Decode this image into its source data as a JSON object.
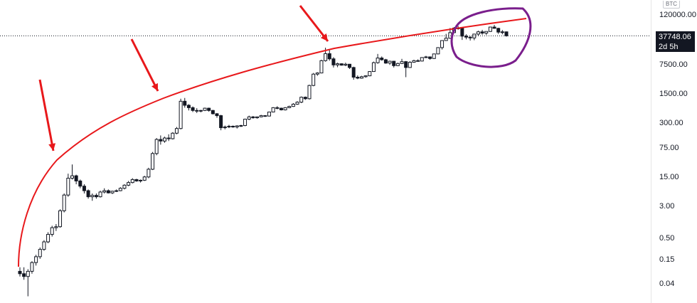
{
  "symbol_badge": "BTC",
  "price_label": {
    "price": "37748.06",
    "countdown": "2d 5h"
  },
  "chart_data": {
    "type": "candlestick",
    "yscale": "log",
    "ylim": [
      0.02,
      160000
    ],
    "y_ticks": [
      "120000.00",
      "7500.00",
      "1500.00",
      "300.00",
      "75.00",
      "15.00",
      "3.00",
      "0.50",
      "0.15",
      "0.04"
    ],
    "current_price": 37748.06,
    "ohlc": [
      [
        0.08,
        0.1,
        0.06,
        0.07
      ],
      [
        0.07,
        0.1,
        0.05,
        0.06
      ],
      [
        0.06,
        0.09,
        0.02,
        0.08
      ],
      [
        0.08,
        0.14,
        0.07,
        0.13
      ],
      [
        0.13,
        0.2,
        0.11,
        0.18
      ],
      [
        0.18,
        0.3,
        0.16,
        0.27
      ],
      [
        0.27,
        0.45,
        0.25,
        0.41
      ],
      [
        0.41,
        0.7,
        0.38,
        0.62
      ],
      [
        0.62,
        1.0,
        0.55,
        0.9
      ],
      [
        0.9,
        1.1,
        0.75,
        0.95
      ],
      [
        0.95,
        2.5,
        0.9,
        2.3
      ],
      [
        2.3,
        6,
        2.1,
        5.5
      ],
      [
        5.5,
        18,
        5,
        14
      ],
      [
        14,
        30,
        13,
        16
      ],
      [
        16,
        17,
        10,
        12
      ],
      [
        12,
        13,
        8,
        9
      ],
      [
        9,
        10,
        6,
        7
      ],
      [
        7,
        7.5,
        4.5,
        5
      ],
      [
        5,
        6,
        4,
        5.4
      ],
      [
        5.4,
        6,
        4.5,
        5
      ],
      [
        5,
        7,
        4.8,
        6.5
      ],
      [
        6.5,
        8,
        6,
        7
      ],
      [
        7,
        7.5,
        6,
        6.2
      ],
      [
        6.2,
        7,
        5.8,
        6.8
      ],
      [
        6.8,
        7.5,
        6.5,
        7
      ],
      [
        7,
        8.5,
        6.8,
        8
      ],
      [
        8,
        10,
        7.5,
        9.5
      ],
      [
        9.5,
        12,
        9,
        11
      ],
      [
        11,
        14,
        10.5,
        13
      ],
      [
        13,
        13.5,
        11.5,
        12
      ],
      [
        12,
        13,
        11,
        12.5
      ],
      [
        12.5,
        16,
        12,
        15
      ],
      [
        15,
        25,
        14,
        23
      ],
      [
        23,
        60,
        22,
        55
      ],
      [
        55,
        130,
        50,
        120
      ],
      [
        120,
        150,
        90,
        110
      ],
      [
        110,
        140,
        100,
        130
      ],
      [
        130,
        160,
        110,
        125
      ],
      [
        125,
        180,
        120,
        170
      ],
      [
        170,
        240,
        160,
        220
      ],
      [
        220,
        1150,
        210,
        1000
      ],
      [
        1000,
        1200,
        700,
        800
      ],
      [
        800,
        850,
        600,
        700
      ],
      [
        700,
        750,
        550,
        600
      ],
      [
        600,
        680,
        520,
        580
      ],
      [
        580,
        620,
        540,
        600
      ],
      [
        600,
        700,
        580,
        680
      ],
      [
        680,
        700,
        560,
        600
      ],
      [
        600,
        620,
        480,
        500
      ],
      [
        500,
        520,
        400,
        450
      ],
      [
        450,
        470,
        200,
        230
      ],
      [
        230,
        260,
        210,
        240
      ],
      [
        240,
        270,
        225,
        250
      ],
      [
        250,
        260,
        230,
        240
      ],
      [
        240,
        265,
        220,
        255
      ],
      [
        255,
        270,
        240,
        260
      ],
      [
        260,
        380,
        250,
        370
      ],
      [
        370,
        450,
        350,
        420
      ],
      [
        420,
        440,
        380,
        400
      ],
      [
        400,
        430,
        380,
        420
      ],
      [
        420,
        470,
        410,
        450
      ],
      [
        450,
        460,
        420,
        440
      ],
      [
        440,
        560,
        430,
        550
      ],
      [
        550,
        720,
        540,
        700
      ],
      [
        700,
        760,
        640,
        680
      ],
      [
        680,
        700,
        600,
        620
      ],
      [
        620,
        720,
        600,
        700
      ],
      [
        700,
        780,
        680,
        750
      ],
      [
        750,
        900,
        730,
        850
      ],
      [
        850,
        1000,
        820,
        950
      ],
      [
        950,
        1300,
        900,
        1250
      ],
      [
        1250,
        1300,
        1080,
        1150
      ],
      [
        1150,
        2500,
        1100,
        2400
      ],
      [
        2400,
        4800,
        2300,
        4500
      ],
      [
        4500,
        5000,
        4100,
        4800
      ],
      [
        4800,
        10000,
        4700,
        9500
      ],
      [
        9500,
        19500,
        9000,
        14000
      ],
      [
        14000,
        17000,
        9500,
        10500
      ],
      [
        10500,
        11500,
        6500,
        7500
      ],
      [
        7500,
        8500,
        6600,
        8000
      ],
      [
        8000,
        8200,
        7200,
        7400
      ],
      [
        7400,
        8500,
        7000,
        7800
      ],
      [
        7800,
        7900,
        6000,
        6500
      ],
      [
        6500,
        6800,
        3300,
        3800
      ],
      [
        3800,
        4200,
        3400,
        3600
      ],
      [
        3600,
        4100,
        3500,
        3900
      ],
      [
        3900,
        4200,
        3700,
        4100
      ],
      [
        4100,
        5300,
        4000,
        5200
      ],
      [
        5200,
        9000,
        5100,
        8500
      ],
      [
        8500,
        13800,
        8000,
        11000
      ],
      [
        11000,
        12000,
        9500,
        10000
      ],
      [
        10000,
        10500,
        8000,
        8300
      ],
      [
        8300,
        9500,
        7500,
        9200
      ],
      [
        9200,
        9400,
        6500,
        7200
      ],
      [
        7200,
        8500,
        7000,
        8100
      ],
      [
        8100,
        10500,
        7900,
        9000
      ],
      [
        9000,
        9300,
        3800,
        6500
      ],
      [
        6500,
        9200,
        6400,
        8700
      ],
      [
        8700,
        10000,
        8500,
        9500
      ],
      [
        9500,
        10200,
        9000,
        9300
      ],
      [
        9300,
        11500,
        9100,
        11300
      ],
      [
        11300,
        12400,
        11000,
        11700
      ],
      [
        11700,
        12000,
        10000,
        10700
      ],
      [
        10700,
        14000,
        10500,
        13800
      ],
      [
        13800,
        19800,
        13500,
        19600
      ],
      [
        19600,
        29300,
        17600,
        29000
      ],
      [
        29000,
        42000,
        28500,
        33000
      ],
      [
        33000,
        58000,
        32000,
        45000
      ],
      [
        45000,
        61000,
        44000,
        58000
      ],
      [
        58000,
        64800,
        53000,
        57000
      ],
      [
        57000,
        59500,
        30000,
        37000
      ],
      [
        37000,
        41000,
        31000,
        35000
      ],
      [
        35000,
        36500,
        29000,
        33500
      ],
      [
        33500,
        42000,
        29500,
        41500
      ],
      [
        41500,
        50000,
        37500,
        47000
      ],
      [
        47000,
        52500,
        40000,
        43800
      ],
      [
        43800,
        48000,
        39500,
        48000
      ],
      [
        48000,
        61500,
        47000,
        61300
      ],
      [
        61300,
        69000,
        57000,
        57000
      ],
      [
        57000,
        59000,
        42000,
        46300
      ],
      [
        46300,
        52000,
        41000,
        47000
      ],
      [
        47000,
        48000,
        36000,
        37800
      ]
    ],
    "resistance_curve": "red curve touching cycle tops",
    "annotations": [
      "arrow",
      "arrow",
      "arrow",
      "arrow",
      "circle"
    ]
  }
}
